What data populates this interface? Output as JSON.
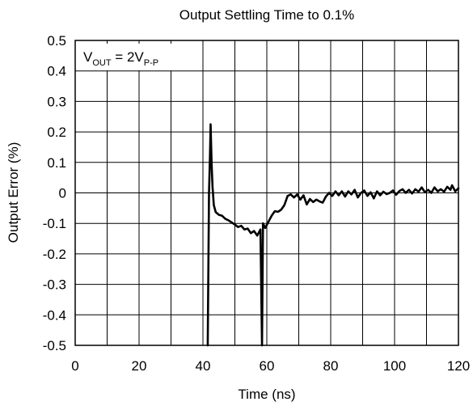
{
  "chart_data": {
    "type": "line",
    "title": "Output Settling Time to 0.1%",
    "xlabel": "Time (ns)",
    "ylabel": "Output Error (%)",
    "xlim": [
      0,
      120
    ],
    "ylim": [
      -0.5,
      0.5
    ],
    "xticks": [
      0,
      20,
      40,
      60,
      80,
      100,
      120
    ],
    "yticks": [
      -0.5,
      -0.4,
      -0.3,
      -0.2,
      -0.1,
      0,
      0.1,
      0.2,
      0.3,
      0.4,
      0.5
    ],
    "xtick_labels": [
      "0",
      "20",
      "40",
      "60",
      "80",
      "100",
      "120"
    ],
    "ytick_labels": [
      "-0.5",
      "-0.4",
      "-0.3",
      "-0.2",
      "-0.1",
      "0",
      "0.1",
      "0.2",
      "0.3",
      "0.4",
      "0.5"
    ],
    "grid": true,
    "annotation": {
      "main": "V",
      "sub1": "OUT",
      "mid": " = 2V",
      "sub2": "P-P"
    },
    "series": [
      {
        "color": "#000000",
        "points": [
          [
            41.5,
            -0.5
          ],
          [
            41.9,
            0.0
          ],
          [
            42.2,
            0.12
          ],
          [
            42.4,
            0.225
          ],
          [
            42.7,
            0.1
          ],
          [
            43.0,
            0.02
          ],
          [
            43.4,
            -0.04
          ],
          [
            44.0,
            -0.063
          ],
          [
            45.0,
            -0.072
          ],
          [
            46.0,
            -0.075
          ],
          [
            47.0,
            -0.085
          ],
          [
            48.0,
            -0.09
          ],
          [
            49.0,
            -0.097
          ],
          [
            50.0,
            -0.104
          ],
          [
            51.0,
            -0.112
          ],
          [
            52.0,
            -0.108
          ],
          [
            53.0,
            -0.12
          ],
          [
            54.0,
            -0.117
          ],
          [
            55.0,
            -0.132
          ],
          [
            56.0,
            -0.125
          ],
          [
            57.0,
            -0.14
          ],
          [
            58.0,
            -0.12
          ],
          [
            58.5,
            -0.5
          ],
          [
            58.8,
            -0.1
          ],
          [
            59.5,
            -0.115
          ],
          [
            60.5,
            -0.095
          ],
          [
            61.5,
            -0.075
          ],
          [
            62.5,
            -0.06
          ],
          [
            63.5,
            -0.062
          ],
          [
            64.5,
            -0.055
          ],
          [
            65.5,
            -0.04
          ],
          [
            66.5,
            -0.01
          ],
          [
            67.5,
            -0.005
          ],
          [
            68.5,
            -0.015
          ],
          [
            69.5,
            -0.005
          ],
          [
            70.5,
            -0.022
          ],
          [
            71.5,
            -0.008
          ],
          [
            72.5,
            -0.038
          ],
          [
            73.5,
            -0.02
          ],
          [
            74.5,
            -0.03
          ],
          [
            75.5,
            -0.022
          ],
          [
            76.5,
            -0.028
          ],
          [
            77.5,
            -0.032
          ],
          [
            78.5,
            -0.012
          ],
          [
            79.5,
            0.0
          ],
          [
            80.5,
            -0.01
          ],
          [
            81.5,
            0.005
          ],
          [
            82.5,
            -0.008
          ],
          [
            83.5,
            0.005
          ],
          [
            84.5,
            -0.012
          ],
          [
            85.5,
            0.005
          ],
          [
            86.5,
            -0.005
          ],
          [
            87.5,
            0.01
          ],
          [
            88.5,
            -0.015
          ],
          [
            89.5,
            0.0
          ],
          [
            90.5,
            0.008
          ],
          [
            91.5,
            -0.01
          ],
          [
            92.5,
            0.002
          ],
          [
            93.5,
            -0.018
          ],
          [
            94.5,
            0.005
          ],
          [
            95.5,
            -0.008
          ],
          [
            96.5,
            0.004
          ],
          [
            97.5,
            -0.004
          ],
          [
            98.5,
            0.0
          ],
          [
            99.5,
            0.008
          ],
          [
            100.5,
            -0.006
          ],
          [
            101.5,
            0.006
          ],
          [
            102.5,
            0.012
          ],
          [
            103.5,
            0.0
          ],
          [
            104.5,
            0.01
          ],
          [
            105.5,
            -0.002
          ],
          [
            106.5,
            0.012
          ],
          [
            107.5,
            0.004
          ],
          [
            108.5,
            0.018
          ],
          [
            109.5,
            0.002
          ],
          [
            110.5,
            0.01
          ],
          [
            111.5,
            0.0
          ],
          [
            112.5,
            0.018
          ],
          [
            113.5,
            0.005
          ],
          [
            114.5,
            0.012
          ],
          [
            115.5,
            0.004
          ],
          [
            116.5,
            0.02
          ],
          [
            117.5,
            0.01
          ],
          [
            118.0,
            0.025
          ],
          [
            119.0,
            0.005
          ],
          [
            120.0,
            0.015
          ]
        ]
      }
    ]
  }
}
